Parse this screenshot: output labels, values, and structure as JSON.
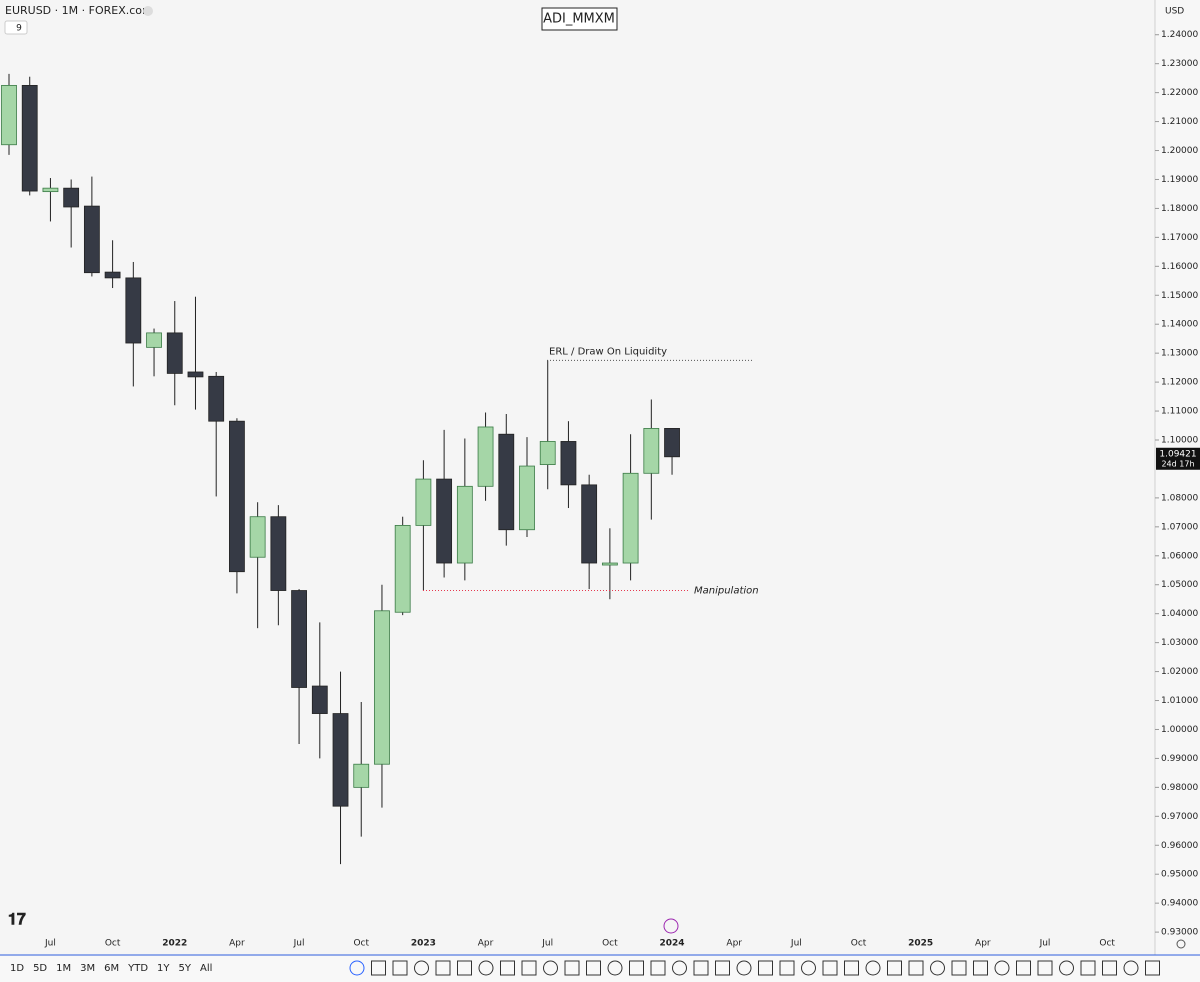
{
  "header": {
    "symbol": "EURUSD · 1M · FOREX.com",
    "indicator_count": "9",
    "currency": "USD"
  },
  "chart_data": {
    "type": "candlestick",
    "title": "ADI_MMXM",
    "categories": [
      null,
      null,
      "Jul",
      null,
      null,
      "Oct",
      null,
      null,
      "2022",
      null,
      null,
      "Apr",
      null,
      null,
      "Jul",
      null,
      null,
      "Oct",
      null,
      null,
      "2023",
      null,
      null,
      "Apr",
      null,
      null,
      "Jul",
      null,
      null,
      "Oct",
      null,
      null,
      "2024",
      null,
      null,
      "Apr",
      null,
      null,
      "Jul",
      null,
      null,
      "Oct",
      null,
      null,
      "2025",
      null,
      null,
      "Apr",
      null,
      null,
      "Jul",
      null,
      null,
      "Oct",
      null,
      null
    ],
    "series": [
      {
        "name": "EURUSD",
        "up_color": "#a5d6a7",
        "down_color": "#363a45",
        "open": [
          1.202,
          1.2225,
          1.1858,
          1.187,
          1.1808,
          1.158,
          1.156,
          1.132,
          1.137,
          1.1235,
          1.122,
          1.1065,
          1.0595,
          1.0735,
          1.048,
          1.015,
          1.0055,
          0.98,
          0.988,
          1.0405,
          1.0705,
          1.0865,
          1.0575,
          1.084,
          1.102,
          1.069,
          1.0915,
          1.0995,
          1.0845,
          1.057,
          1.0575,
          1.0885,
          1.104,
          null,
          null,
          null,
          null,
          null,
          null,
          null,
          null,
          null,
          null,
          null,
          null,
          null,
          null,
          null,
          null,
          null,
          null,
          null,
          null,
          null,
          null,
          null
        ],
        "high": [
          1.2265,
          1.2255,
          1.1905,
          1.19,
          1.191,
          1.169,
          1.1615,
          1.1385,
          1.148,
          1.1495,
          1.1235,
          1.1075,
          1.0785,
          1.0775,
          1.0485,
          1.037,
          1.02,
          1.0095,
          1.05,
          1.0735,
          1.093,
          1.1035,
          1.1005,
          1.1095,
          1.109,
          1.101,
          1.1275,
          1.1065,
          1.088,
          1.0695,
          1.102,
          1.114,
          1.104,
          null,
          null,
          null,
          null,
          null,
          null,
          null,
          null,
          null,
          null,
          null,
          null,
          null,
          null,
          null,
          null,
          null,
          null,
          null,
          null,
          null,
          null,
          null
        ],
        "low": [
          1.1985,
          1.1845,
          1.1755,
          1.1665,
          1.1565,
          1.1525,
          1.1185,
          1.122,
          1.112,
          1.1105,
          1.0805,
          1.047,
          1.035,
          1.036,
          0.995,
          0.99,
          0.9535,
          0.963,
          0.973,
          1.0395,
          1.048,
          1.0525,
          1.0515,
          1.079,
          1.0635,
          1.0665,
          1.083,
          1.0765,
          1.0485,
          1.045,
          1.0515,
          1.0725,
          1.088,
          null,
          null,
          null,
          null,
          null,
          null,
          null,
          null,
          null,
          null,
          null,
          null,
          null,
          null,
          null,
          null,
          null,
          null,
          null,
          null,
          null,
          null,
          null
        ],
        "close": [
          1.2225,
          1.186,
          1.187,
          1.1805,
          1.1578,
          1.156,
          1.1335,
          1.137,
          1.123,
          1.1218,
          1.1065,
          1.0545,
          1.0735,
          1.048,
          1.0145,
          1.0055,
          0.9735,
          0.988,
          1.041,
          1.0705,
          1.0865,
          1.0575,
          1.084,
          1.1045,
          1.069,
          1.091,
          1.0995,
          1.0845,
          1.0575,
          1.0575,
          1.0885,
          1.104,
          1.0942,
          null,
          null,
          null,
          null,
          null,
          null,
          null,
          null,
          null,
          null,
          null,
          null,
          null,
          null,
          null,
          null,
          null,
          null,
          null,
          null,
          null,
          null,
          null
        ]
      }
    ],
    "ylim": [
      0.929,
      1.252
    ],
    "yticks": [
      {
        "value": 1.24,
        "label": "1.24000"
      },
      {
        "value": 1.23,
        "label": "1.23000"
      },
      {
        "value": 1.22,
        "label": "1.22000"
      },
      {
        "value": 1.21,
        "label": "1.21000"
      },
      {
        "value": 1.2,
        "label": "1.20000"
      },
      {
        "value": 1.19,
        "label": "1.19000"
      },
      {
        "value": 1.18,
        "label": "1.18000"
      },
      {
        "value": 1.17,
        "label": "1.17000"
      },
      {
        "value": 1.16,
        "label": "1.16000"
      },
      {
        "value": 1.15,
        "label": "1.15000"
      },
      {
        "value": 1.14,
        "label": "1.14000"
      },
      {
        "value": 1.13,
        "label": "1.13000"
      },
      {
        "value": 1.12,
        "label": "1.12000"
      },
      {
        "value": 1.11,
        "label": "1.11000"
      },
      {
        "value": 1.1,
        "label": "1.10000"
      },
      {
        "value": 1.08,
        "label": "1.08000"
      },
      {
        "value": 1.07,
        "label": "1.07000"
      },
      {
        "value": 1.06,
        "label": "1.06000"
      },
      {
        "value": 1.05,
        "label": "1.05000"
      },
      {
        "value": 1.04,
        "label": "1.04000"
      },
      {
        "value": 1.03,
        "label": "1.03000"
      },
      {
        "value": 1.02,
        "label": "1.02000"
      },
      {
        "value": 1.01,
        "label": "1.01000"
      },
      {
        "value": 1.0,
        "label": "1.00000"
      },
      {
        "value": 0.99,
        "label": "0.99000"
      },
      {
        "value": 0.98,
        "label": "0.98000"
      },
      {
        "value": 0.97,
        "label": "0.97000"
      },
      {
        "value": 0.96,
        "label": "0.96000"
      },
      {
        "value": 0.95,
        "label": "0.95000"
      },
      {
        "value": 0.94,
        "label": "0.94000"
      },
      {
        "value": 0.93,
        "label": "0.93000"
      }
    ],
    "last_price": {
      "value": 1.09421,
      "label": "1.09421"
    },
    "countdown": "24d 17h",
    "levels": [
      {
        "label": "ERL / Draw On Liquidity",
        "value": 1.1275,
        "color": "#555555"
      },
      {
        "label": "Manipulation",
        "value": 1.048,
        "color": "#e53950"
      }
    ]
  },
  "toolbar": {
    "timeframes": [
      "1D",
      "5D",
      "1M",
      "3M",
      "6M",
      "YTD",
      "1Y",
      "5Y",
      "All"
    ]
  }
}
